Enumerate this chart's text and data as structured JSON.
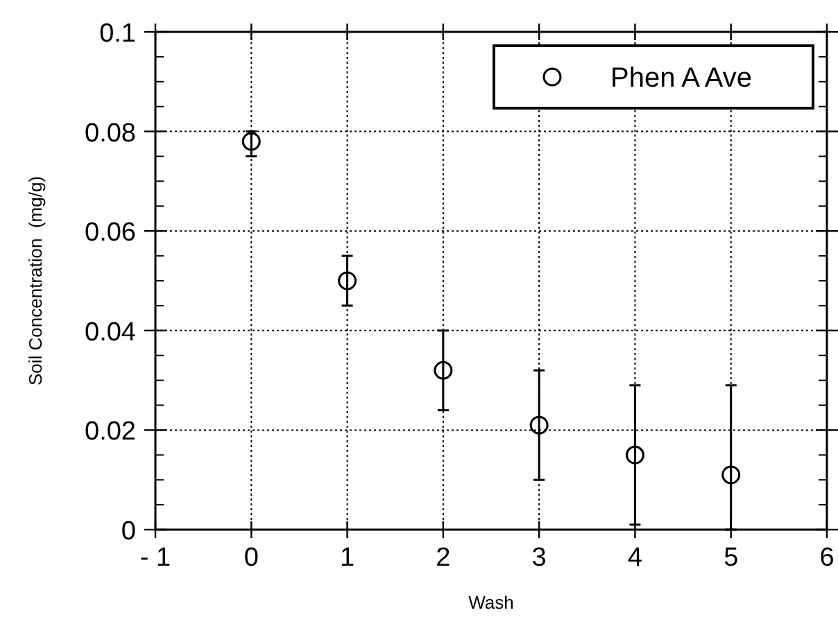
{
  "chart_data": {
    "type": "scatter",
    "xlabel": "Wash",
    "ylabel": "Soil Concentration  (mg/g)",
    "x": [
      0,
      1,
      2,
      3,
      4,
      5
    ],
    "series": [
      {
        "name": "Phen A Ave",
        "color": "#000000",
        "values": [
          0.078,
          0.05,
          0.032,
          0.021,
          0.015,
          0.011
        ],
        "errors": [
          [
            0.075,
            0.08
          ],
          [
            0.045,
            0.055
          ],
          [
            0.024,
            0.04
          ],
          [
            0.01,
            0.032
          ],
          [
            0.001,
            0.029
          ],
          [
            0,
            0.029
          ]
        ]
      }
    ],
    "xlim": [
      -1,
      6
    ],
    "xticks": [
      {
        "value": -1,
        "label": "- 1"
      },
      0,
      1,
      2,
      3,
      4,
      5,
      6
    ],
    "ylim": [
      0,
      0.1
    ],
    "yticks": [
      0,
      0.02,
      0.04,
      0.06,
      0.08,
      0.1
    ],
    "grid": true,
    "legend": "top right",
    "marker": "circle"
  }
}
